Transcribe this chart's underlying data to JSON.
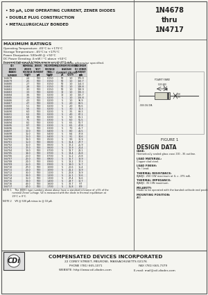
{
  "title_part": "1N4678\nthru\n1N4717",
  "bullets": [
    "• 50 μA, LOW OPERATING CURRENT, ZENER DIODES",
    "• DOUBLE PLUG CONSTRUCTION",
    "• METALLURGICALLY BONDED"
  ],
  "max_ratings_title": "MAXIMUM RATINGS",
  "max_ratings": [
    "Operating Temperature: -65°C to +175°C",
    "Storage Temperature: -65°C to +175°C",
    "Power Dissipation: 500mW @ +50°C",
    "DC Power Derating: 4 mW / °C above +50°C",
    "Forward Voltage: 1.1 Volts maximum @ 200 mA"
  ],
  "elec_char_title": "ELECTRICAL CHARACTERISTICS @ 25°C, unless otherwise specified.",
  "table_data": [
    [
      "1N4678",
      "2.4",
      "500",
      "0.150",
      "50",
      "1.0",
      "175.0"
    ],
    [
      "1N4679",
      "2.5",
      "500",
      "0.150",
      "50",
      "1.0",
      "166.7"
    ],
    [
      "1N4680",
      "2.7",
      "500",
      "0.150",
      "50",
      "1.0",
      "154.3"
    ],
    [
      "1N4681",
      "2.8",
      "500",
      "0.150",
      "50",
      "1.0",
      "148.8"
    ],
    [
      "1N4682",
      "3.0",
      "500",
      "0.150",
      "50",
      "1.0",
      "138.9"
    ],
    [
      "1N4683",
      "3.3",
      "500",
      "0.200",
      "10",
      "1.0",
      "126.3"
    ],
    [
      "1N4684",
      "3.6",
      "500",
      "0.200",
      "10",
      "1.0",
      "115.7"
    ],
    [
      "1N4685",
      "3.9",
      "500",
      "0.200",
      "5",
      "1.0",
      "106.8"
    ],
    [
      "1N4686",
      "4.3",
      "500",
      "0.200",
      "5",
      "1.0",
      "96.9"
    ],
    [
      "1N4687",
      "4.7",
      "500",
      "0.200",
      "5",
      "2.0",
      "88.5"
    ],
    [
      "1N4688",
      "5.1",
      "500",
      "0.200",
      "5",
      "2.0",
      "81.6"
    ],
    [
      "1N4689",
      "5.6",
      "500",
      "0.200",
      "5",
      "3.0",
      "74.3"
    ],
    [
      "1N4690",
      "6.0",
      "500",
      "0.200",
      "5",
      "3.5",
      "69.3"
    ],
    [
      "1N4691",
      "6.2",
      "500",
      "0.200",
      "5",
      "4.0",
      "67.1"
    ],
    [
      "1N4692",
      "6.8",
      "500",
      "0.200",
      "5",
      "5.0",
      "61.1"
    ],
    [
      "1N4693",
      "7.5",
      "500",
      "0.300",
      "5",
      "6.0",
      "55.5"
    ],
    [
      "1N4694",
      "8.2",
      "500",
      "0.300",
      "5",
      "6.5",
      "50.7"
    ],
    [
      "1N4695",
      "8.7",
      "500",
      "0.300",
      "5",
      "6.5",
      "47.8"
    ],
    [
      "1N4696",
      "9.1",
      "500",
      "0.300",
      "5",
      "7.0",
      "45.7"
    ],
    [
      "1N4697",
      "10.0",
      "500",
      "0.400",
      "5",
      "8.0",
      "41.5"
    ],
    [
      "1N4698",
      "11.0",
      "500",
      "0.400",
      "5",
      "8.4",
      "37.8"
    ],
    [
      "1N4699",
      "12.0",
      "500",
      "0.400",
      "5",
      "9.1",
      "34.6"
    ],
    [
      "1N4700",
      "13.0",
      "500",
      "0.500",
      "5",
      "9.9",
      "31.9"
    ],
    [
      "1N4701",
      "15.0",
      "500",
      "0.600",
      "5",
      "11.4",
      "27.7"
    ],
    [
      "1N4702",
      "16.0",
      "500",
      "0.600",
      "5",
      "12.2",
      "25.9"
    ],
    [
      "1N4703",
      "17.0",
      "500",
      "0.600",
      "5",
      "12.9",
      "24.4"
    ],
    [
      "1N4704",
      "18.0",
      "500",
      "0.700",
      "5",
      "13.7",
      "23.1"
    ],
    [
      "1N4705",
      "19.0",
      "500",
      "0.700",
      "5",
      "14.4",
      "21.8"
    ],
    [
      "1N4706",
      "20.0",
      "500",
      "0.700",
      "5",
      "15.2",
      "20.8"
    ],
    [
      "1N4707",
      "22.0",
      "500",
      "0.800",
      "5",
      "16.7",
      "18.9"
    ],
    [
      "1N4708",
      "24.0",
      "500",
      "0.900",
      "5",
      "18.2",
      "17.3"
    ],
    [
      "1N4709",
      "25.0",
      "500",
      "0.900",
      "5",
      "19.0",
      "16.7"
    ],
    [
      "1N4710",
      "27.0",
      "500",
      "1.000",
      "5",
      "20.6",
      "15.4"
    ],
    [
      "1N4711",
      "28.0",
      "500",
      "1.000",
      "5",
      "21.2",
      "14.9"
    ],
    [
      "1N4712",
      "30.0",
      "500",
      "1.100",
      "5",
      "22.8",
      "13.9"
    ],
    [
      "1N4713",
      "33.0",
      "500",
      "1.200",
      "5",
      "25.1",
      "12.6"
    ],
    [
      "1N4714",
      "36.0",
      "500",
      "1.300",
      "5",
      "27.4",
      "11.6"
    ],
    [
      "1N4715",
      "39.0",
      "500",
      "1.400",
      "5",
      "29.7",
      "10.7"
    ],
    [
      "1N4716",
      "43.0",
      "500",
      "1.600",
      "5",
      "32.7",
      "9.7"
    ],
    [
      "1N4717",
      "47.0",
      "500",
      "1.700",
      "5",
      "35.8",
      "8.9"
    ]
  ],
  "note1_lines": [
    "NOTE 1    The JEDEC type numbers shown above have a standard tolerance of ±5% of the",
    "            nominal Zener voltage. VZ is measured with the diode in thermal equilibrium at",
    "            25°C ± 0°C."
  ],
  "note2_line": "NOTE 2    VR @ 500 μA minus to @ 10 μA.",
  "design_data_title": "DESIGN DATA",
  "design_data": [
    [
      "CASE:",
      "Hermetically sealed glass case; DO - 35 outline."
    ],
    [
      "LEAD MATERIAL:",
      "Copper clad steel."
    ],
    [
      "LEAD FINISH:",
      "Tin / Lead."
    ],
    [
      "THERMAL RESISTANCE:",
      "θJAθJC: 250 C/W maximum at IL = .375 mA."
    ],
    [
      "THERMAL IMPEDANCE:",
      "θJAθJC: 35 C/W maximum."
    ],
    [
      "POLARITY:",
      "Diode to be operated with the banded cathode end positive."
    ],
    [
      "MOUNTING POSITION:",
      "ANY."
    ]
  ],
  "figure_label": "FIGURE 1",
  "company_name": "COMPENSATED DEVICES INCORPORATED",
  "company_address": "22 COREY STREET, MELROSE, MASSACHUSETTS 02176",
  "company_phone": "PHONE (781) 665-1071",
  "company_fax": "FAX (781) 665-7379",
  "company_website": "WEBSITE: http://www.cdi-diodes.com",
  "company_email": "E-mail: mail@cdi-diodes.com",
  "bg_color": "#f5f5f0",
  "table_header_bg": "#d0d0d0",
  "table_alt_bg": "#e8e8e8",
  "text_color": "#222222",
  "border_color": "#555555"
}
